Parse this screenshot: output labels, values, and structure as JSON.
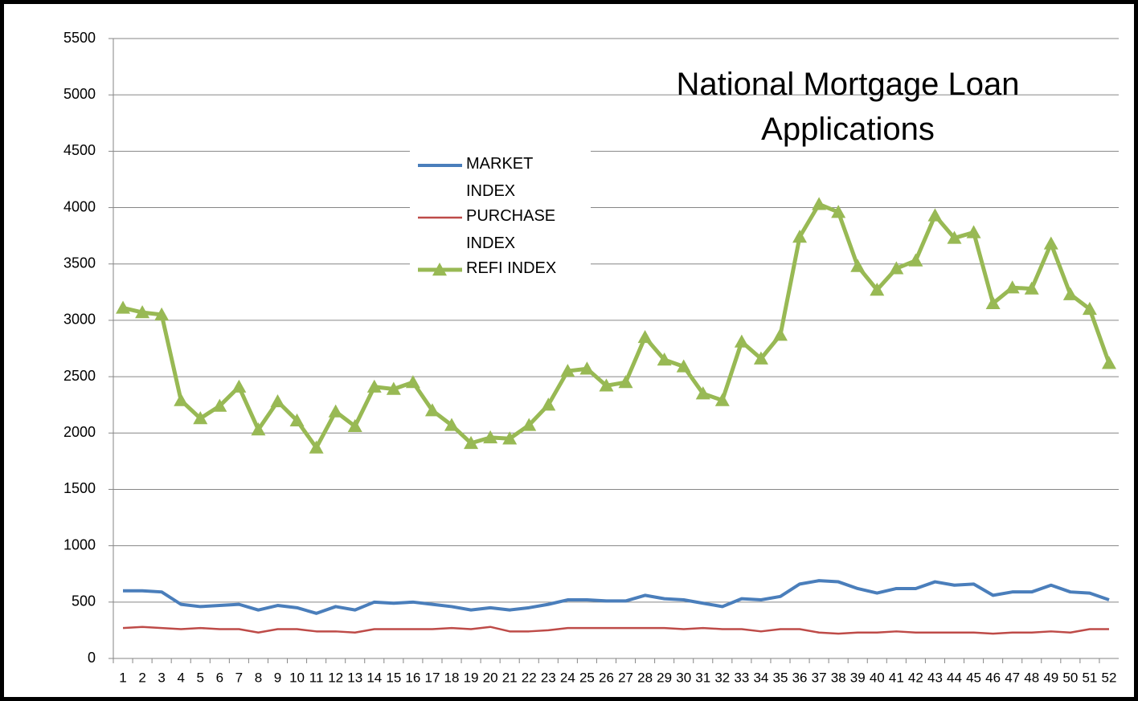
{
  "chart_data": {
    "type": "line",
    "title": "National Mortgage Loan Applications",
    "categories": [
      1,
      2,
      3,
      4,
      5,
      6,
      7,
      8,
      9,
      10,
      11,
      12,
      13,
      14,
      15,
      16,
      17,
      18,
      19,
      20,
      21,
      22,
      23,
      24,
      25,
      26,
      27,
      28,
      29,
      30,
      31,
      32,
      33,
      34,
      35,
      36,
      37,
      38,
      39,
      40,
      41,
      42,
      43,
      44,
      45,
      46,
      47,
      48,
      49,
      50,
      51,
      52
    ],
    "ylim": [
      0,
      5500
    ],
    "yticks": [
      0,
      500,
      1000,
      1500,
      2000,
      2500,
      3000,
      3500,
      4000,
      4500,
      5000,
      5500
    ],
    "grid": true,
    "series": [
      {
        "name": "MARKET INDEX",
        "color": "#4a7ebb",
        "marker": "none",
        "values": [
          600,
          600,
          590,
          480,
          460,
          470,
          480,
          430,
          470,
          450,
          400,
          460,
          430,
          500,
          490,
          500,
          480,
          460,
          430,
          450,
          430,
          450,
          480,
          520,
          520,
          510,
          510,
          560,
          530,
          520,
          490,
          460,
          530,
          520,
          550,
          660,
          690,
          680,
          620,
          580,
          620,
          620,
          680,
          650,
          660,
          560,
          590,
          590,
          650,
          590,
          580,
          520
        ]
      },
      {
        "name": "PURCHASE INDEX",
        "color": "#be4b48",
        "marker": "none",
        "values": [
          270,
          280,
          270,
          260,
          270,
          260,
          260,
          230,
          260,
          260,
          240,
          240,
          230,
          260,
          260,
          260,
          260,
          270,
          260,
          280,
          240,
          240,
          250,
          270,
          270,
          270,
          270,
          270,
          270,
          260,
          270,
          260,
          260,
          240,
          260,
          260,
          230,
          220,
          230,
          230,
          240,
          230,
          230,
          230,
          230,
          220,
          230,
          230,
          240,
          230,
          260,
          260
        ]
      },
      {
        "name": "REFI INDEX",
        "color": "#98b954",
        "marker": "triangle",
        "values": [
          3110,
          3070,
          3050,
          2290,
          2130,
          2240,
          2410,
          2030,
          2280,
          2110,
          1870,
          2190,
          2060,
          2410,
          2390,
          2450,
          2200,
          2070,
          1910,
          1960,
          1950,
          2070,
          2250,
          2550,
          2570,
          2420,
          2450,
          2850,
          2650,
          2590,
          2350,
          2290,
          2810,
          2660,
          2870,
          3740,
          4030,
          3960,
          3480,
          3270,
          3460,
          3530,
          3930,
          3730,
          3780,
          3150,
          3290,
          3280,
          3680,
          3230,
          3100,
          2620
        ]
      }
    ]
  }
}
